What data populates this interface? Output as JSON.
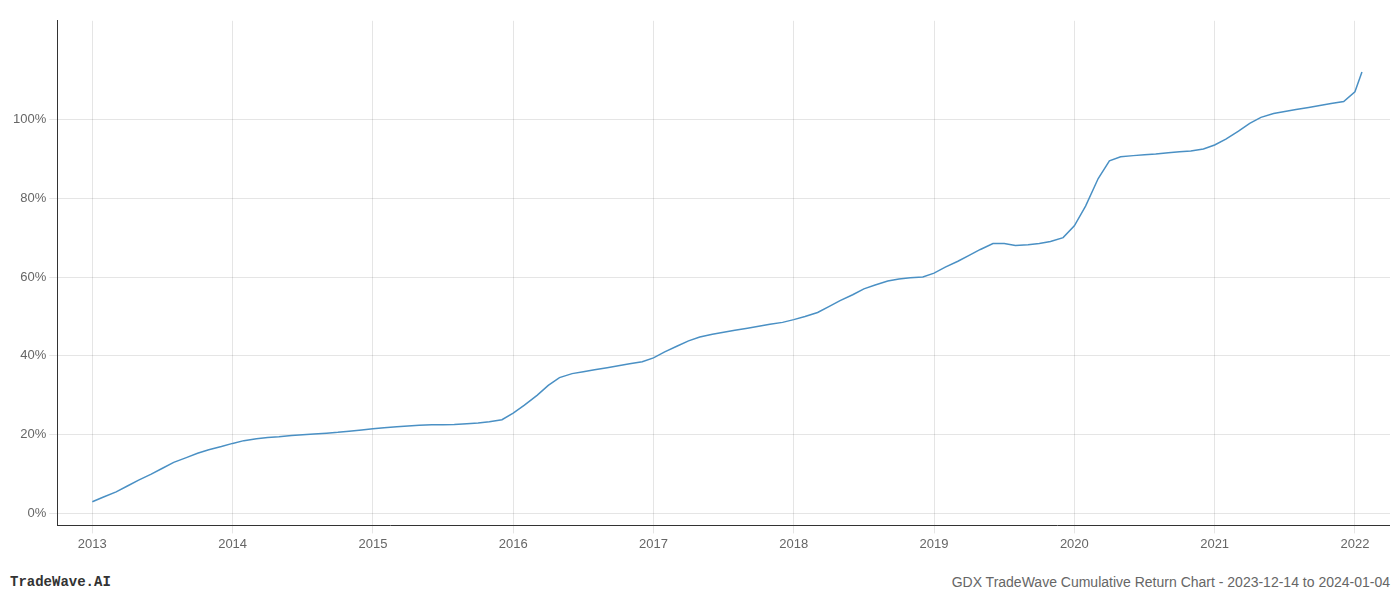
{
  "chart_data": {
    "type": "line",
    "x": [
      2013.0,
      2013.08,
      2013.17,
      2013.25,
      2013.33,
      2013.42,
      2013.5,
      2013.58,
      2013.67,
      2013.75,
      2013.83,
      2013.92,
      2014.0,
      2014.08,
      2014.17,
      2014.25,
      2014.33,
      2014.42,
      2014.5,
      2014.58,
      2014.67,
      2014.75,
      2014.83,
      2014.92,
      2015.0,
      2015.08,
      2015.17,
      2015.25,
      2015.33,
      2015.42,
      2015.5,
      2015.58,
      2015.67,
      2015.75,
      2015.83,
      2015.92,
      2016.0,
      2016.08,
      2016.17,
      2016.25,
      2016.33,
      2016.42,
      2016.5,
      2016.58,
      2016.67,
      2016.75,
      2016.83,
      2016.92,
      2017.0,
      2017.08,
      2017.17,
      2017.25,
      2017.33,
      2017.42,
      2017.5,
      2017.58,
      2017.67,
      2017.75,
      2017.83,
      2017.92,
      2018.0,
      2018.08,
      2018.17,
      2018.25,
      2018.33,
      2018.42,
      2018.5,
      2018.58,
      2018.67,
      2018.75,
      2018.83,
      2018.92,
      2019.0,
      2019.08,
      2019.17,
      2019.25,
      2019.33,
      2019.42,
      2019.5,
      2019.58,
      2019.67,
      2019.75,
      2019.83,
      2019.92,
      2020.0,
      2020.08,
      2020.17,
      2020.25,
      2020.33,
      2020.42,
      2020.5,
      2020.58,
      2020.67,
      2020.75,
      2020.83,
      2020.92,
      2021.0,
      2021.08,
      2021.17,
      2021.25,
      2021.33,
      2021.42,
      2021.5,
      2021.58,
      2021.67,
      2021.75,
      2021.83,
      2021.92,
      2022.0,
      2022.05
    ],
    "values": [
      3.0,
      4.2,
      5.5,
      7.0,
      8.5,
      10.0,
      11.5,
      13.0,
      14.2,
      15.3,
      16.2,
      17.0,
      17.8,
      18.5,
      19.0,
      19.3,
      19.5,
      19.8,
      20.0,
      20.2,
      20.4,
      20.6,
      20.9,
      21.2,
      21.5,
      21.8,
      22.0,
      22.2,
      22.4,
      22.5,
      22.5,
      22.6,
      22.8,
      23.0,
      23.3,
      23.8,
      25.5,
      27.5,
      30.0,
      32.5,
      34.5,
      35.5,
      36.0,
      36.5,
      37.0,
      37.5,
      38.0,
      38.5,
      39.5,
      41.0,
      42.5,
      43.8,
      44.8,
      45.5,
      46.0,
      46.5,
      47.0,
      47.5,
      48.0,
      48.5,
      49.2,
      50.0,
      51.0,
      52.5,
      54.0,
      55.5,
      57.0,
      58.0,
      59.0,
      59.5,
      59.8,
      60.0,
      61.0,
      62.5,
      64.0,
      65.5,
      67.0,
      68.5,
      68.5,
      68.0,
      68.2,
      68.5,
      69.0,
      70.0,
      73.0,
      78.0,
      85.0,
      89.5,
      90.5,
      90.8,
      91.0,
      91.2,
      91.5,
      91.8,
      92.0,
      92.5,
      93.5,
      95.0,
      97.0,
      99.0,
      100.5,
      101.5,
      102.0,
      102.5,
      103.0,
      103.5,
      104.0,
      104.5,
      107.0,
      112.0
    ],
    "color": "#4a90c4",
    "xlim": [
      2012.75,
      2022.25
    ],
    "ylim": [
      -3,
      125
    ],
    "xticks": [
      2013,
      2014,
      2015,
      2016,
      2017,
      2018,
      2019,
      2020,
      2021,
      2022
    ],
    "yticks": [
      {
        "value": 0,
        "label": "0%"
      },
      {
        "value": 20,
        "label": "20%"
      },
      {
        "value": 40,
        "label": "40%"
      },
      {
        "value": 60,
        "label": "60%"
      },
      {
        "value": 80,
        "label": "80%"
      },
      {
        "value": 100,
        "label": "100%"
      }
    ],
    "grid": true,
    "annotations": [
      "TradeWave.AI",
      "GDX TradeWave Cumulative Return Chart - 2023-12-14 to 2024-01-04"
    ]
  }
}
